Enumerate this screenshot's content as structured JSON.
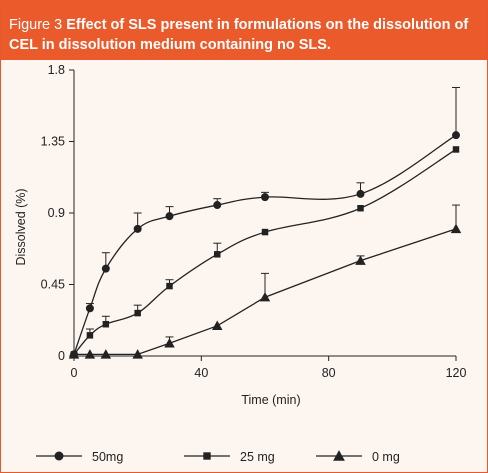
{
  "header": {
    "figure_label": "Figure 3",
    "caption": "Effect of SLS present in formulations on the dissolution of CEL in dissolution medium containing no SLS."
  },
  "colors": {
    "header_bg": "#ea5a2a",
    "header_text": "#ffffff",
    "panel_bg": "#fdf6f0",
    "ink": "#222222"
  },
  "chart_data": {
    "type": "line",
    "xlabel": "Time (min)",
    "ylabel": "Dissolved (%)",
    "xlim": [
      0,
      120
    ],
    "ylim": [
      0,
      1.8
    ],
    "xticks": [
      0,
      40,
      80,
      120
    ],
    "xtick_labels": [
      "0",
      "40",
      "80",
      "120"
    ],
    "yticks": [
      0,
      0.45,
      0.9,
      1.35,
      1.8
    ],
    "ytick_labels": [
      "0",
      "0.45",
      "0.9",
      "1.35",
      "1.8"
    ],
    "grid": false,
    "legend_position": "bottom",
    "series": [
      {
        "name": "50mg",
        "marker": "circle",
        "x": [
          0,
          5,
          10,
          20,
          30,
          45,
          60,
          90,
          120
        ],
        "y": [
          0.01,
          0.3,
          0.55,
          0.8,
          0.88,
          0.95,
          1.0,
          1.02,
          1.39
        ],
        "err": [
          0,
          0.03,
          0.1,
          0.1,
          0.06,
          0.04,
          0.03,
          0.07,
          0.3
        ]
      },
      {
        "name": "25 mg",
        "marker": "square",
        "x": [
          0,
          5,
          10,
          20,
          30,
          45,
          60,
          90,
          120
        ],
        "y": [
          0.01,
          0.13,
          0.2,
          0.27,
          0.44,
          0.64,
          0.78,
          0.93,
          1.3
        ],
        "err": [
          0,
          0.04,
          0.05,
          0.05,
          0.04,
          0.07,
          0,
          0,
          0
        ]
      },
      {
        "name": "0 mg",
        "marker": "triangle",
        "x": [
          0,
          5,
          10,
          20,
          30,
          45,
          60,
          90,
          120
        ],
        "y": [
          0.01,
          0.01,
          0.01,
          0.01,
          0.08,
          0.19,
          0.37,
          0.6,
          0.8
        ],
        "err": [
          0,
          0,
          0,
          0,
          0.04,
          0,
          0.15,
          0.03,
          0.15
        ]
      }
    ]
  }
}
